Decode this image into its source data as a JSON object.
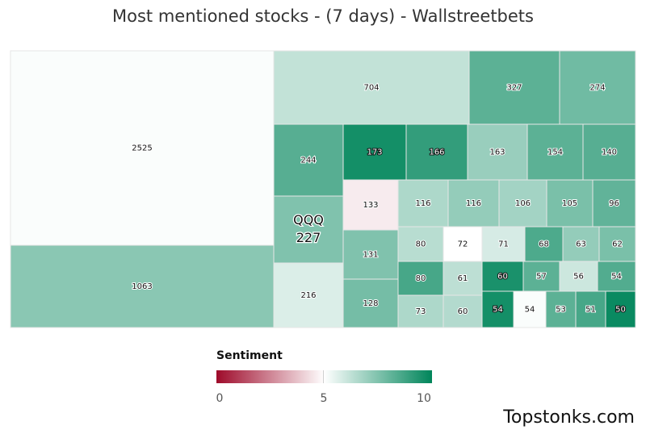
{
  "chart_data": {
    "type": "treemap",
    "title": "Most mentioned stocks - (7 days) - Wallstreetbets",
    "color_scale": {
      "title": "Sentiment",
      "min": 0,
      "mid": 5,
      "max": 10,
      "ticks": [
        "0",
        "5",
        "10"
      ],
      "colors": [
        "#9e0a2a",
        "#ffffff",
        "#00855a"
      ]
    },
    "cells": [
      {
        "label": "",
        "value": 2525,
        "sentiment": 5.1
      },
      {
        "label": "",
        "value": 1063,
        "sentiment": 7.3
      },
      {
        "label": "",
        "value": 704,
        "sentiment": 6.2
      },
      {
        "label": "",
        "value": 327,
        "sentiment": 8.2
      },
      {
        "label": "",
        "value": 274,
        "sentiment": 7.8
      },
      {
        "label": "",
        "value": 244,
        "sentiment": 8.3
      },
      {
        "label": "QQQ",
        "value": 227,
        "sentiment": 7.5
      },
      {
        "label": "",
        "value": 216,
        "sentiment": 5.7
      },
      {
        "label": "",
        "value": 173,
        "sentiment": 9.6
      },
      {
        "label": "",
        "value": 166,
        "sentiment": 9.0
      },
      {
        "label": "",
        "value": 163,
        "sentiment": 7.0
      },
      {
        "label": "",
        "value": 154,
        "sentiment": 8.2
      },
      {
        "label": "",
        "value": 140,
        "sentiment": 8.3
      },
      {
        "label": "",
        "value": 133,
        "sentiment": 4.6
      },
      {
        "label": "",
        "value": 131,
        "sentiment": 7.5
      },
      {
        "label": "",
        "value": 128,
        "sentiment": 7.7
      },
      {
        "label": "",
        "value": 116,
        "sentiment": 6.6
      },
      {
        "label": "",
        "value": 116,
        "sentiment": 7.1
      },
      {
        "label": "",
        "value": 106,
        "sentiment": 6.8
      },
      {
        "label": "",
        "value": 105,
        "sentiment": 7.6
      },
      {
        "label": "",
        "value": 96,
        "sentiment": 8.1
      },
      {
        "label": "",
        "value": 80,
        "sentiment": 6.4
      },
      {
        "label": "",
        "value": 72,
        "sentiment": 5.0
      },
      {
        "label": "",
        "value": 71,
        "sentiment": 5.8
      },
      {
        "label": "",
        "value": 68,
        "sentiment": 8.5
      },
      {
        "label": "",
        "value": 63,
        "sentiment": 7.1
      },
      {
        "label": "",
        "value": 62,
        "sentiment": 7.6
      },
      {
        "label": "",
        "value": 80,
        "sentiment": 8.6
      },
      {
        "label": "",
        "value": 61,
        "sentiment": 6.3
      },
      {
        "label": "",
        "value": 60,
        "sentiment": 9.5
      },
      {
        "label": "",
        "value": 57,
        "sentiment": 8.2
      },
      {
        "label": "",
        "value": 56,
        "sentiment": 6.0
      },
      {
        "label": "",
        "value": 54,
        "sentiment": 8.4
      },
      {
        "label": "",
        "value": 73,
        "sentiment": 6.6
      },
      {
        "label": "",
        "value": 60,
        "sentiment": 6.5
      },
      {
        "label": "",
        "value": 54,
        "sentiment": 9.6
      },
      {
        "label": "",
        "value": 54,
        "sentiment": 5.1
      },
      {
        "label": "",
        "value": 53,
        "sentiment": 8.2
      },
      {
        "label": "",
        "value": 51,
        "sentiment": 8.6
      },
      {
        "label": "",
        "value": 50,
        "sentiment": 9.8
      }
    ]
  },
  "footer": {
    "brand": "Topstonks.com"
  }
}
